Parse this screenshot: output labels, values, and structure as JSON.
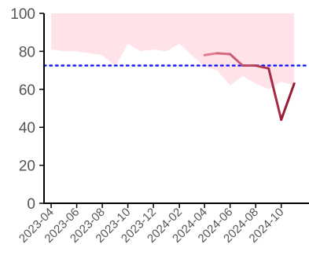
{
  "chart_data": {
    "type": "line",
    "title": "",
    "xlabel": "",
    "ylabel": "",
    "ylim": [
      0,
      100
    ],
    "xlim": [
      "2023-03-15",
      "2024-11-25"
    ],
    "x_ticks": [
      "2023-04",
      "2023-06",
      "2023-08",
      "2023-10",
      "2023-12",
      "2024-02",
      "2024-04",
      "2024-06",
      "2024-08",
      "2024-10"
    ],
    "y_ticks": [
      0,
      20,
      40,
      60,
      80,
      100
    ],
    "grid": false,
    "reference_line": {
      "y": 72.5,
      "style": "dotted",
      "color": "#1a1aff"
    },
    "band": {
      "color": "#ffe3e8",
      "upper": 100,
      "lower": [
        [
          "2023-04-01",
          81
        ],
        [
          "2023-05-01",
          80
        ],
        [
          "2023-06-01",
          80
        ],
        [
          "2023-07-01",
          79
        ],
        [
          "2023-08-01",
          78
        ],
        [
          "2023-09-01",
          72
        ],
        [
          "2023-10-01",
          84
        ],
        [
          "2023-11-01",
          80
        ],
        [
          "2023-12-01",
          81
        ],
        [
          "2024-01-01",
          80
        ],
        [
          "2024-02-01",
          84
        ],
        [
          "2024-03-01",
          78
        ],
        [
          "2024-04-01",
          72
        ],
        [
          "2024-05-01",
          70
        ],
        [
          "2024-06-01",
          62
        ],
        [
          "2024-07-01",
          67
        ],
        [
          "2024-08-01",
          63
        ],
        [
          "2024-09-01",
          60
        ],
        [
          "2024-10-01",
          64
        ],
        [
          "2024-11-01",
          62
        ]
      ]
    },
    "series": [
      {
        "color_start": "#e07a90",
        "color_end": "#9a1a34",
        "points": [
          [
            "2024-04-01",
            78
          ],
          [
            "2024-05-01",
            79
          ],
          [
            "2024-06-01",
            78.5
          ],
          [
            "2024-07-01",
            72.5
          ],
          [
            "2024-08-01",
            72.5
          ],
          [
            "2024-09-01",
            71
          ],
          [
            "2024-10-01",
            44
          ],
          [
            "2024-11-01",
            63
          ]
        ]
      }
    ]
  }
}
